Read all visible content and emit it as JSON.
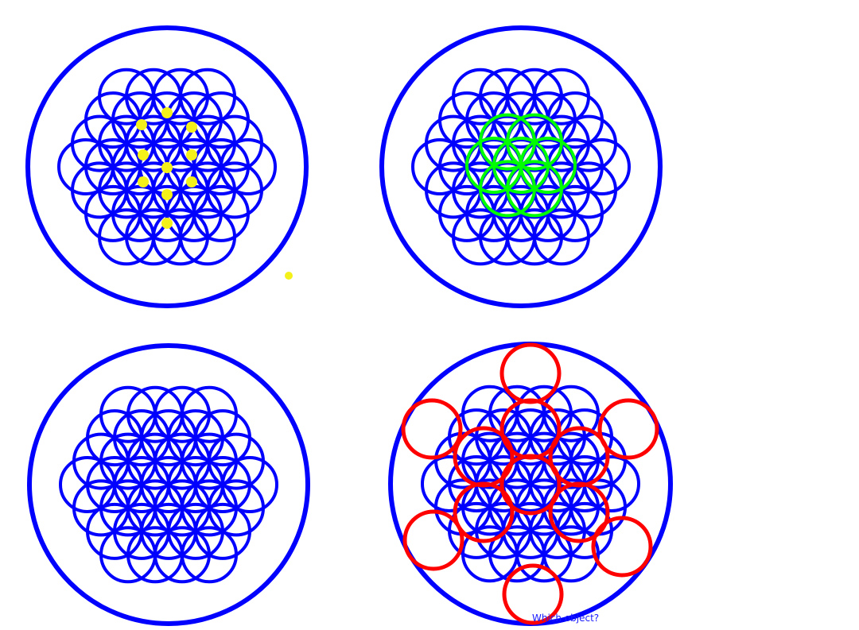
{
  "caption": "Which object?",
  "colors": {
    "background": "#ffffff",
    "pattern": "#0000ff",
    "dots": "#f4f01a",
    "highlight_green": "#00ff00",
    "highlight_red": "#ff0000",
    "caption": "#1a1aff"
  },
  "panels": [
    {
      "name": "panel-top-left",
      "pattern": "flower-of-life",
      "overlay": "yellow-dots"
    },
    {
      "name": "panel-top-right",
      "pattern": "flower-of-life",
      "overlay": "green-flower"
    },
    {
      "name": "panel-bottom-left",
      "pattern": "flower-of-life",
      "overlay": "none"
    },
    {
      "name": "panel-bottom-right",
      "pattern": "flower-of-life",
      "overlay": "red-circles"
    }
  ]
}
